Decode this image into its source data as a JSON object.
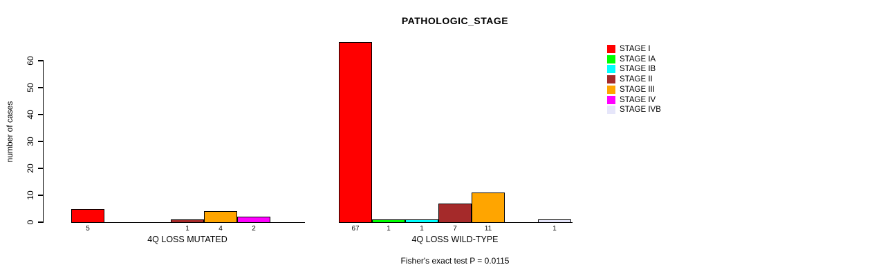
{
  "chart_data": {
    "type": "bar",
    "title": "PATHOLOGIC_STAGE",
    "ylabel": "number of cases",
    "xlabel": "",
    "footer": "Fisher's exact test P = 0.0115",
    "ylim": [
      0,
      60
    ],
    "y_ticks": [
      0,
      10,
      20,
      30,
      40,
      50,
      60
    ],
    "grid": false,
    "legend_position": "right",
    "categories": [
      "4Q LOSS MUTATED",
      "4Q LOSS WILD-TYPE"
    ],
    "series": [
      {
        "name": "STAGE I",
        "color": "#FF0000",
        "values": [
          5,
          67
        ]
      },
      {
        "name": "STAGE IA",
        "color": "#00FF00",
        "values": [
          0,
          1
        ]
      },
      {
        "name": "STAGE IB",
        "color": "#00FFFF",
        "values": [
          0,
          1
        ]
      },
      {
        "name": "STAGE II",
        "color": "#A52A2A",
        "values": [
          1,
          7
        ]
      },
      {
        "name": "STAGE III",
        "color": "#FFA500",
        "values": [
          4,
          11
        ]
      },
      {
        "name": "STAGE IV",
        "color": "#FF00FF",
        "values": [
          2,
          0
        ]
      },
      {
        "name": "STAGE IVB",
        "color": "#E6E6FA",
        "values": [
          0,
          1
        ]
      }
    ]
  }
}
